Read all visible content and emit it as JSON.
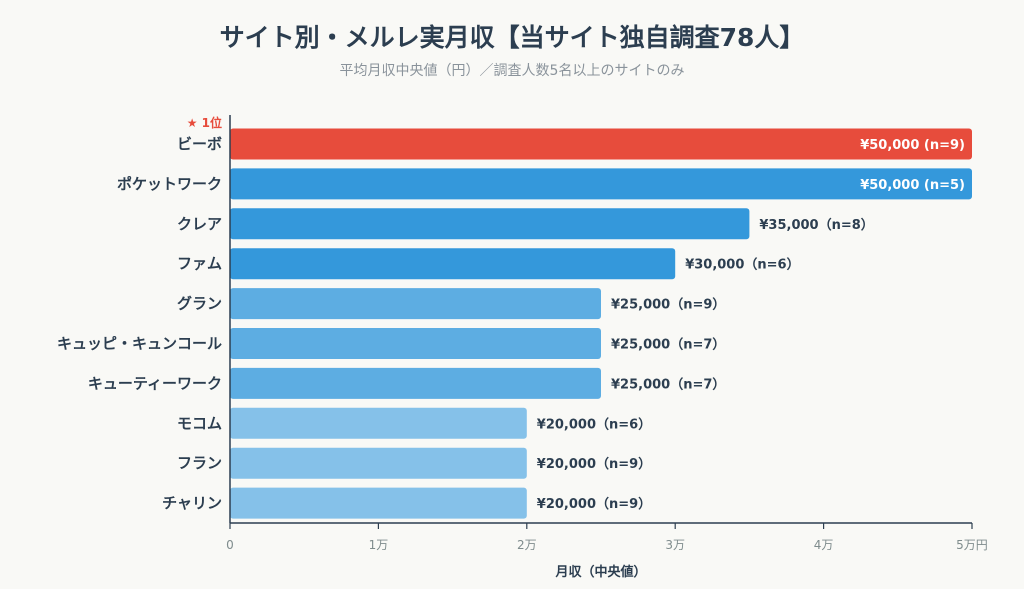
{
  "chart_data": {
    "type": "bar",
    "orientation": "horizontal",
    "title": "サイト別・メルレ実月収【当サイト独自調査78人】",
    "subtitle": "平均月収中央値（円）／調査人数5名以上のサイトのみ",
    "xlabel": "月収（中央値）",
    "ylabel": "",
    "xlim": [
      0,
      50000
    ],
    "ticks": [
      {
        "value": 0,
        "label": "0"
      },
      {
        "value": 10000,
        "label": "1万"
      },
      {
        "value": 20000,
        "label": "2万"
      },
      {
        "value": 30000,
        "label": "3万"
      },
      {
        "value": 40000,
        "label": "4万"
      },
      {
        "value": 50000,
        "label": "5万円"
      }
    ],
    "rank_badge": "★ 1位",
    "categories": [
      "ビーボ",
      "ポケットワーク",
      "クレア",
      "ファム",
      "グラン",
      "キュッピ・キュンコール",
      "キューティーワーク",
      "モコム",
      "フラン",
      "チャリン"
    ],
    "values": [
      50000,
      50000,
      35000,
      30000,
      25000,
      25000,
      25000,
      20000,
      20000,
      20000
    ],
    "n": [
      9,
      5,
      8,
      6,
      9,
      7,
      7,
      6,
      9,
      9
    ],
    "value_labels": [
      "¥50,000 (n=9)",
      "¥50,000 (n=5)",
      "¥35,000（n=8）",
      "¥30,000（n=6）",
      "¥25,000（n=9）",
      "¥25,000（n=7）",
      "¥25,000（n=7）",
      "¥20,000（n=6）",
      "¥20,000（n=9）",
      "¥20,000（n=9）"
    ],
    "colors": [
      "#e74c3c",
      "#3498db",
      "#3498db",
      "#3498db",
      "#5dade2",
      "#5dade2",
      "#5dade2",
      "#85c1e9",
      "#85c1e9",
      "#85c1e9"
    ],
    "grid": false,
    "legend": "none"
  }
}
